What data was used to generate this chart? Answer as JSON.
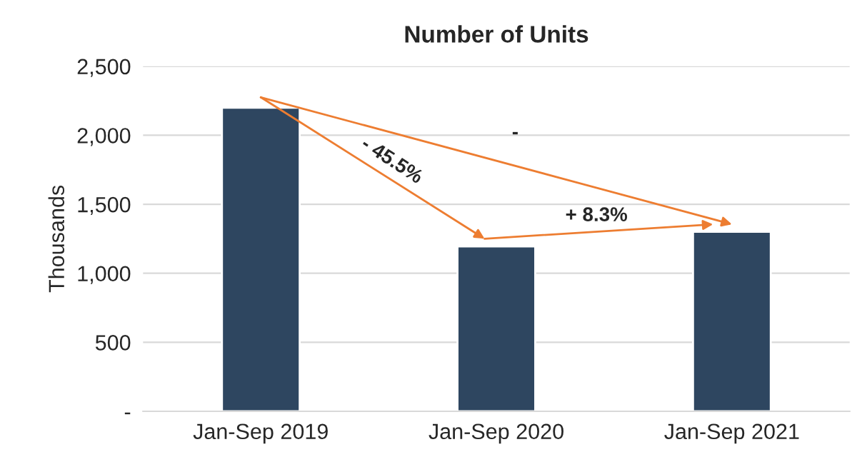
{
  "chart_data": {
    "type": "bar",
    "title": "Number of Units",
    "ylabel": "Thousands",
    "categories": [
      "Jan-Sep 2019",
      "Jan-Sep 2020",
      "Jan-Sep 2021"
    ],
    "values": [
      2200,
      1195,
      1300
    ],
    "color": "#2e4660",
    "ylim": [
      0,
      2500
    ],
    "yticks": [
      {
        "value": 0,
        "label": "-"
      },
      500,
      {
        "value": 1000,
        "label": "1,000"
      },
      {
        "value": 1500,
        "label": "1,500"
      },
      {
        "value": 2000,
        "label": "2,000"
      },
      {
        "value": 2500,
        "label": "2,500"
      }
    ],
    "grid": "y",
    "legend": false,
    "annotations": [
      "- 45.5%",
      "+ 8.3%",
      "-"
    ]
  }
}
